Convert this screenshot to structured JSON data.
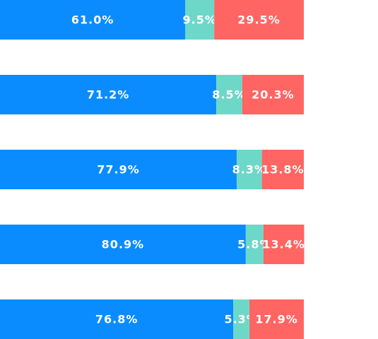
{
  "chart_data": {
    "type": "bar",
    "orientation": "horizontal",
    "stacked": true,
    "normalized": true,
    "title": "",
    "xlabel": "",
    "ylabel": "",
    "xlim": [
      0,
      100
    ],
    "grid": false,
    "legend": "none",
    "categories": [
      "",
      "",
      "",
      "",
      ""
    ],
    "series": [
      {
        "color": "#0a8cff",
        "values": [
          61.0,
          71.2,
          77.9,
          80.9,
          76.8
        ],
        "labels": [
          "61.0%",
          "71.2%",
          "77.9%",
          "80.9%",
          "76.8%"
        ]
      },
      {
        "color": "#6dd8c8",
        "values": [
          9.5,
          8.5,
          8.3,
          5.8,
          5.3
        ],
        "labels": [
          "9.5%",
          "8.5%",
          "8.3%",
          "5.8%",
          "5.3%"
        ]
      },
      {
        "color": "#ff6562",
        "values": [
          29.5,
          20.3,
          13.8,
          13.4,
          17.9
        ],
        "labels": [
          "29.5%",
          "20.3%",
          "13.8%",
          "13.4%",
          "17.9%"
        ]
      }
    ]
  }
}
